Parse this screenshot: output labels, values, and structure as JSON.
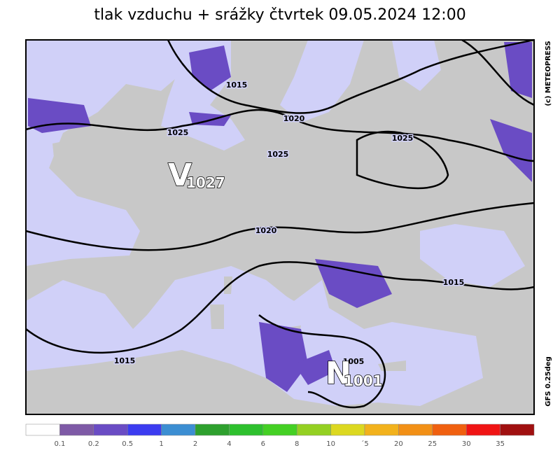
{
  "title": "tlak vzduchu + srážky čtvrtek 09.05.2024 12:00",
  "credit": "(c) METEOPRESS",
  "model": "GFS 0.25deg",
  "isobar_labels": [
    "1015",
    "1020",
    "1025",
    "1025",
    "1025",
    "1020",
    "1015",
    "1015",
    "1005"
  ],
  "pressure_centers": [
    {
      "letter": "V",
      "value": "1027"
    },
    {
      "letter": "N",
      "value": "1001"
    }
  ],
  "legend": {
    "colors": [
      "#ffffff",
      "#7e5aa6",
      "#6a4cc4",
      "#3c3cf0",
      "#3c8ed2",
      "#2ea02e",
      "#2ec02e",
      "#44d024",
      "#94d022",
      "#dcd820",
      "#f2b21c",
      "#f29016",
      "#f06010",
      "#f01414",
      "#a01010"
    ],
    "labels": [
      "0.1",
      "0.2",
      "0.5",
      "1",
      "2",
      "4",
      "6",
      "8",
      "10",
      "´5",
      "20",
      "25",
      "30",
      "35"
    ]
  }
}
